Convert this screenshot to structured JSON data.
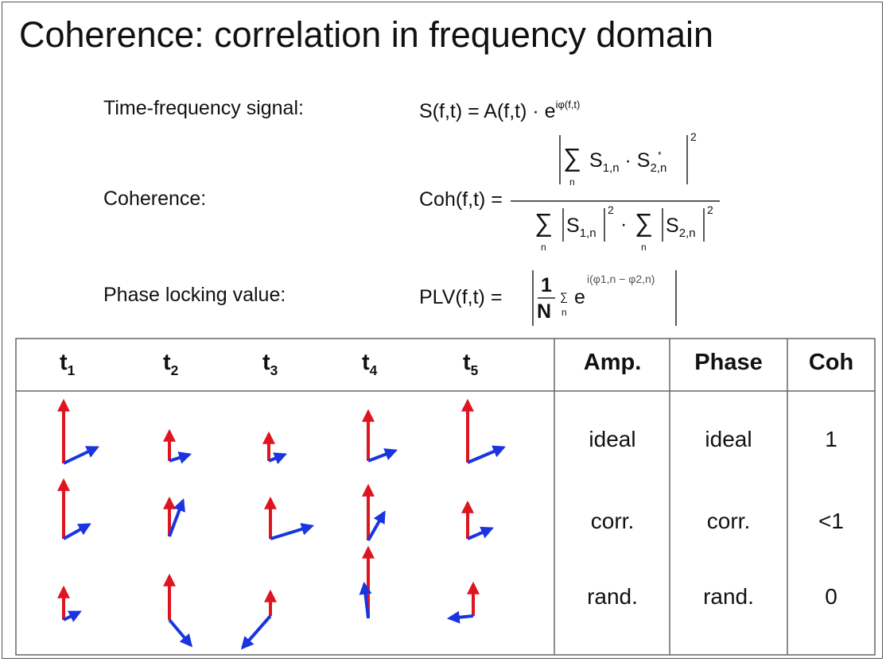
{
  "title": "Coherence: correlation in frequency domain",
  "formulas": [
    {
      "label": "Time-frequency signal:",
      "lhs": "S(f,t) = A(f,t) · e",
      "exp": "iφ(f,t)"
    },
    {
      "label": "Coherence:",
      "lhs": "Coh(f,t) =",
      "sum": "∑",
      "index": "n",
      "s": "S",
      "s1_sub": "1,n",
      "s2_sub": "2,n",
      "dot": "·",
      "conj": "*",
      "power": "2"
    },
    {
      "label": "Phase locking value:",
      "lhs": "PLV(f,t) =",
      "one": "1",
      "N": "N",
      "sum": "∑",
      "index": "n",
      "e": "e",
      "exp": "i(φ1,n − φ2,n)"
    }
  ],
  "table": {
    "time_headers": [
      {
        "base": "t",
        "sub": "1"
      },
      {
        "base": "t",
        "sub": "2"
      },
      {
        "base": "t",
        "sub": "3"
      },
      {
        "base": "t",
        "sub": "4"
      },
      {
        "base": "t",
        "sub": "5"
      }
    ],
    "columns": [
      "Amp.",
      "Phase",
      "Coh"
    ],
    "rows": [
      [
        "ideal",
        "ideal",
        "1"
      ],
      [
        "corr.",
        "corr.",
        "<1"
      ],
      [
        "rand.",
        "rand.",
        "0"
      ]
    ]
  }
}
